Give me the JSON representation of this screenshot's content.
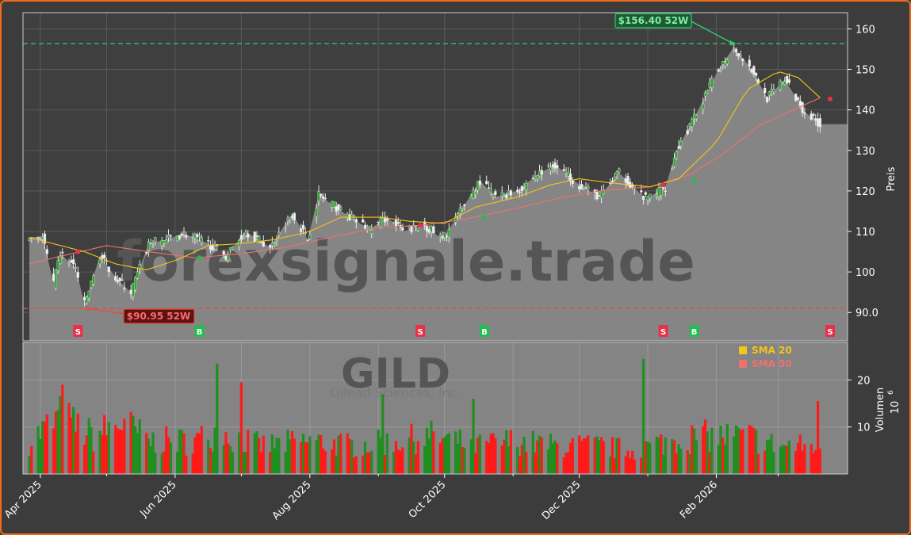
{
  "chart_data": {
    "type": "candlestick",
    "ticker": "GILD",
    "company": "Gilead Sciences, Inc.",
    "watermark": "forexsignale.trade",
    "price_axis": {
      "label": "Preis",
      "ylim": [
        83,
        164
      ],
      "ticks": [
        90,
        100,
        110,
        120,
        130,
        140,
        150,
        160
      ],
      "tick_labels": [
        "90.0",
        "100",
        "110",
        "120",
        "130",
        "140",
        "150",
        "160"
      ]
    },
    "volume_axis": {
      "label": "Volumen",
      "unit_label": "10",
      "unit_exp": "6",
      "ylim": [
        0,
        28
      ],
      "ticks": [
        10,
        20
      ],
      "tick_labels": [
        "10",
        "20"
      ]
    },
    "x_ticks": [
      "Apr 2025",
      "Jun 2025",
      "Aug 2025",
      "Oct 2025",
      "Dec 2025",
      "Feb 2026"
    ],
    "x_tick_dates": [
      "2025-04-01",
      "2025-06-01",
      "2025-08-01",
      "2025-10-01",
      "2025-12-01",
      "2026-02-01"
    ],
    "x_minor_dates": [
      "2025-05-01",
      "2025-07-01",
      "2025-09-01",
      "2025-11-01",
      "2026-01-01",
      "2026-03-01"
    ],
    "date_range": [
      "2025-03-27",
      "2026-03-31"
    ],
    "high_52w": {
      "value": 156.4,
      "label": "$156.40 52W",
      "date": "2026-02-10",
      "color": "#2ecc71"
    },
    "low_52w": {
      "value": 90.95,
      "label": "$90.95 52W",
      "date": "2025-04-21",
      "color": "#e74c3c"
    },
    "close_anchors": [
      [
        "2025-03-27",
        108.5
      ],
      [
        "2025-04-02",
        108.8
      ],
      [
        "2025-04-07",
        97.0
      ],
      [
        "2025-04-10",
        104.5
      ],
      [
        "2025-04-17",
        101.0
      ],
      [
        "2025-04-21",
        92.0
      ],
      [
        "2025-04-28",
        104.0
      ],
      [
        "2025-05-06",
        98.0
      ],
      [
        "2025-05-12",
        95.0
      ],
      [
        "2025-05-20",
        107.0
      ],
      [
        "2025-05-28",
        108.0
      ],
      [
        "2025-06-05",
        109.5
      ],
      [
        "2025-06-16",
        107.0
      ],
      [
        "2025-06-24",
        104.0
      ],
      [
        "2025-07-03",
        110.0
      ],
      [
        "2025-07-14",
        106.0
      ],
      [
        "2025-07-24",
        114.5
      ],
      [
        "2025-07-31",
        108.0
      ],
      [
        "2025-08-05",
        119.0
      ],
      [
        "2025-08-18",
        114.0
      ],
      [
        "2025-08-28",
        110.5
      ],
      [
        "2025-09-05",
        113.5
      ],
      [
        "2025-09-12",
        110.0
      ],
      [
        "2025-09-22",
        111.5
      ],
      [
        "2025-09-30",
        108.0
      ],
      [
        "2025-10-10",
        116.5
      ],
      [
        "2025-10-17",
        122.5
      ],
      [
        "2025-10-24",
        118.5
      ],
      [
        "2025-11-03",
        120.0
      ],
      [
        "2025-11-12",
        124.0
      ],
      [
        "2025-11-20",
        126.5
      ],
      [
        "2025-12-01",
        121.5
      ],
      [
        "2025-12-10",
        118.5
      ],
      [
        "2025-12-19",
        124.5
      ],
      [
        "2025-12-31",
        118.0
      ],
      [
        "2026-01-09",
        121.0
      ],
      [
        "2026-01-14",
        130.0
      ],
      [
        "2026-01-22",
        138.0
      ],
      [
        "2026-02-02",
        150.0
      ],
      [
        "2026-02-09",
        155.5
      ],
      [
        "2026-02-17",
        150.0
      ],
      [
        "2026-02-24",
        143.0
      ],
      [
        "2026-03-04",
        147.5
      ],
      [
        "2026-03-13",
        139.5
      ],
      [
        "2026-03-20",
        136.5
      ]
    ],
    "sma20_anchors": [
      [
        "2025-03-27",
        108.5
      ],
      [
        "2025-04-21",
        105.0
      ],
      [
        "2025-05-05",
        102.0
      ],
      [
        "2025-05-19",
        100.5
      ],
      [
        "2025-06-02",
        103.0
      ],
      [
        "2025-06-16",
        106.5
      ],
      [
        "2025-07-01",
        107.0
      ],
      [
        "2025-07-16",
        108.0
      ],
      [
        "2025-08-01",
        110.0
      ],
      [
        "2025-08-15",
        113.5
      ],
      [
        "2025-09-02",
        113.5
      ],
      [
        "2025-09-15",
        112.5
      ],
      [
        "2025-10-01",
        112.0
      ],
      [
        "2025-10-15",
        116.0
      ],
      [
        "2025-11-03",
        118.5
      ],
      [
        "2025-11-18",
        121.5
      ],
      [
        "2025-12-01",
        123.0
      ],
      [
        "2025-12-15",
        122.0
      ],
      [
        "2026-01-02",
        121.0
      ],
      [
        "2026-01-15",
        123.0
      ],
      [
        "2026-02-01",
        132.0
      ],
      [
        "2026-02-15",
        145.0
      ],
      [
        "2026-03-01",
        149.5
      ],
      [
        "2026-03-10",
        148.0
      ],
      [
        "2026-03-20",
        143.0
      ]
    ],
    "sma50_anchors": [
      [
        "2025-03-27",
        102.0
      ],
      [
        "2025-04-15",
        104.5
      ],
      [
        "2025-05-01",
        106.5
      ],
      [
        "2025-05-20",
        105.0
      ],
      [
        "2025-06-10",
        103.5
      ],
      [
        "2025-07-01",
        104.5
      ],
      [
        "2025-07-20",
        106.0
      ],
      [
        "2025-08-10",
        108.5
      ],
      [
        "2025-09-01",
        111.0
      ],
      [
        "2025-09-20",
        111.5
      ],
      [
        "2025-10-10",
        113.0
      ],
      [
        "2025-11-01",
        115.5
      ],
      [
        "2025-11-20",
        118.0
      ],
      [
        "2025-12-10",
        120.0
      ],
      [
        "2026-01-02",
        121.0
      ],
      [
        "2026-01-20",
        124.0
      ],
      [
        "2026-02-05",
        129.5
      ],
      [
        "2026-02-20",
        136.0
      ],
      [
        "2026-03-10",
        140.5
      ],
      [
        "2026-03-20",
        143.0
      ]
    ],
    "volume_anchors": [
      [
        "2025-03-27",
        7
      ],
      [
        "2025-04-10",
        12
      ],
      [
        "2025-04-25",
        8
      ],
      [
        "2025-05-08",
        11
      ],
      [
        "2025-05-20",
        7
      ],
      [
        "2025-06-10",
        7
      ],
      [
        "2025-06-20",
        9
      ],
      [
        "2025-07-10",
        6
      ],
      [
        "2025-08-01",
        7
      ],
      [
        "2025-08-20",
        6
      ],
      [
        "2025-09-10",
        7
      ],
      [
        "2025-09-25",
        8
      ],
      [
        "2025-10-15",
        6
      ],
      [
        "2025-11-01",
        7
      ],
      [
        "2025-11-20",
        6
      ],
      [
        "2025-12-10",
        6
      ],
      [
        "2025-12-25",
        5
      ],
      [
        "2026-01-10",
        7
      ],
      [
        "2026-01-25",
        8
      ],
      [
        "2026-02-15",
        8
      ],
      [
        "2026-03-01",
        6
      ],
      [
        "2026-03-20",
        6
      ]
    ],
    "volume_spikes": [
      [
        "2025-04-11",
        19
      ],
      [
        "2025-06-20",
        23.5
      ],
      [
        "2025-07-01",
        19.5
      ],
      [
        "2025-09-03",
        17
      ],
      [
        "2025-10-14",
        16
      ],
      [
        "2025-12-30",
        24.5
      ],
      [
        "2026-03-19",
        15.5
      ]
    ],
    "signals": [
      {
        "date": "2025-04-18",
        "label": "S",
        "color": "#e8304a",
        "price": 105.0
      },
      {
        "date": "2025-06-12",
        "label": "B",
        "color": "#1fbf4f",
        "price": 103.5
      },
      {
        "date": "2025-09-20",
        "label": "S",
        "color": "#e8304a",
        "price": 111.5
      },
      {
        "date": "2025-10-19",
        "label": "B",
        "color": "#1fbf4f",
        "price": 113.5
      },
      {
        "date": "2026-01-08",
        "label": "S",
        "color": "#e8304a",
        "price": 121.5
      },
      {
        "date": "2026-01-22",
        "label": "B",
        "color": "#1fbf4f",
        "price": 122.5
      },
      {
        "date": "2026-03-31",
        "label": "S",
        "color": "#e8304a",
        "price": 142.7
      }
    ],
    "legend": [
      {
        "name": "SMA 20",
        "color": "#f5c518"
      },
      {
        "name": "SMA 50",
        "color": "#f07070"
      }
    ],
    "colors": {
      "up": "#1f8f1f",
      "down": "#ff1a1a",
      "area": "#858585",
      "sma20": "#f5c518",
      "sma50": "#f07070"
    }
  }
}
